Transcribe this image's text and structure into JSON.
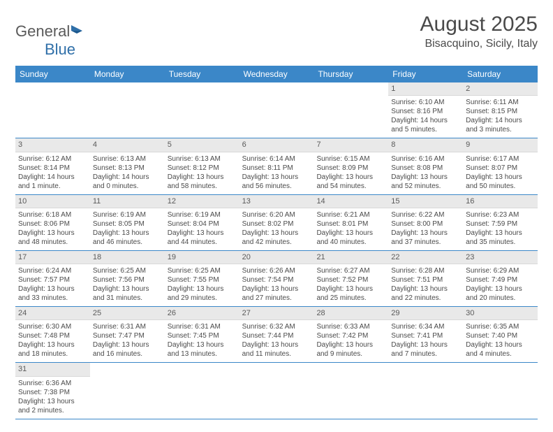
{
  "logo": {
    "textA": "General",
    "textB": "Blue"
  },
  "title": "August 2025",
  "location": "Bisacquino, Sicily, Italy",
  "colors": {
    "header_bg": "#3b87c8",
    "header_text": "#ffffff",
    "daynum_bg": "#e9e9e9",
    "row_border": "#3b87c8",
    "text": "#4a4a4a",
    "logo_gray": "#5a5a5a",
    "logo_blue": "#2f6fa8"
  },
  "weekdays": [
    "Sunday",
    "Monday",
    "Tuesday",
    "Wednesday",
    "Thursday",
    "Friday",
    "Saturday"
  ],
  "weeks": [
    [
      null,
      null,
      null,
      null,
      null,
      {
        "n": "1",
        "sr": "Sunrise: 6:10 AM",
        "ss": "Sunset: 8:16 PM",
        "dl": "Daylight: 14 hours and 5 minutes."
      },
      {
        "n": "2",
        "sr": "Sunrise: 6:11 AM",
        "ss": "Sunset: 8:15 PM",
        "dl": "Daylight: 14 hours and 3 minutes."
      }
    ],
    [
      {
        "n": "3",
        "sr": "Sunrise: 6:12 AM",
        "ss": "Sunset: 8:14 PM",
        "dl": "Daylight: 14 hours and 1 minute."
      },
      {
        "n": "4",
        "sr": "Sunrise: 6:13 AM",
        "ss": "Sunset: 8:13 PM",
        "dl": "Daylight: 14 hours and 0 minutes."
      },
      {
        "n": "5",
        "sr": "Sunrise: 6:13 AM",
        "ss": "Sunset: 8:12 PM",
        "dl": "Daylight: 13 hours and 58 minutes."
      },
      {
        "n": "6",
        "sr": "Sunrise: 6:14 AM",
        "ss": "Sunset: 8:11 PM",
        "dl": "Daylight: 13 hours and 56 minutes."
      },
      {
        "n": "7",
        "sr": "Sunrise: 6:15 AM",
        "ss": "Sunset: 8:09 PM",
        "dl": "Daylight: 13 hours and 54 minutes."
      },
      {
        "n": "8",
        "sr": "Sunrise: 6:16 AM",
        "ss": "Sunset: 8:08 PM",
        "dl": "Daylight: 13 hours and 52 minutes."
      },
      {
        "n": "9",
        "sr": "Sunrise: 6:17 AM",
        "ss": "Sunset: 8:07 PM",
        "dl": "Daylight: 13 hours and 50 minutes."
      }
    ],
    [
      {
        "n": "10",
        "sr": "Sunrise: 6:18 AM",
        "ss": "Sunset: 8:06 PM",
        "dl": "Daylight: 13 hours and 48 minutes."
      },
      {
        "n": "11",
        "sr": "Sunrise: 6:19 AM",
        "ss": "Sunset: 8:05 PM",
        "dl": "Daylight: 13 hours and 46 minutes."
      },
      {
        "n": "12",
        "sr": "Sunrise: 6:19 AM",
        "ss": "Sunset: 8:04 PM",
        "dl": "Daylight: 13 hours and 44 minutes."
      },
      {
        "n": "13",
        "sr": "Sunrise: 6:20 AM",
        "ss": "Sunset: 8:02 PM",
        "dl": "Daylight: 13 hours and 42 minutes."
      },
      {
        "n": "14",
        "sr": "Sunrise: 6:21 AM",
        "ss": "Sunset: 8:01 PM",
        "dl": "Daylight: 13 hours and 40 minutes."
      },
      {
        "n": "15",
        "sr": "Sunrise: 6:22 AM",
        "ss": "Sunset: 8:00 PM",
        "dl": "Daylight: 13 hours and 37 minutes."
      },
      {
        "n": "16",
        "sr": "Sunrise: 6:23 AM",
        "ss": "Sunset: 7:59 PM",
        "dl": "Daylight: 13 hours and 35 minutes."
      }
    ],
    [
      {
        "n": "17",
        "sr": "Sunrise: 6:24 AM",
        "ss": "Sunset: 7:57 PM",
        "dl": "Daylight: 13 hours and 33 minutes."
      },
      {
        "n": "18",
        "sr": "Sunrise: 6:25 AM",
        "ss": "Sunset: 7:56 PM",
        "dl": "Daylight: 13 hours and 31 minutes."
      },
      {
        "n": "19",
        "sr": "Sunrise: 6:25 AM",
        "ss": "Sunset: 7:55 PM",
        "dl": "Daylight: 13 hours and 29 minutes."
      },
      {
        "n": "20",
        "sr": "Sunrise: 6:26 AM",
        "ss": "Sunset: 7:54 PM",
        "dl": "Daylight: 13 hours and 27 minutes."
      },
      {
        "n": "21",
        "sr": "Sunrise: 6:27 AM",
        "ss": "Sunset: 7:52 PM",
        "dl": "Daylight: 13 hours and 25 minutes."
      },
      {
        "n": "22",
        "sr": "Sunrise: 6:28 AM",
        "ss": "Sunset: 7:51 PM",
        "dl": "Daylight: 13 hours and 22 minutes."
      },
      {
        "n": "23",
        "sr": "Sunrise: 6:29 AM",
        "ss": "Sunset: 7:49 PM",
        "dl": "Daylight: 13 hours and 20 minutes."
      }
    ],
    [
      {
        "n": "24",
        "sr": "Sunrise: 6:30 AM",
        "ss": "Sunset: 7:48 PM",
        "dl": "Daylight: 13 hours and 18 minutes."
      },
      {
        "n": "25",
        "sr": "Sunrise: 6:31 AM",
        "ss": "Sunset: 7:47 PM",
        "dl": "Daylight: 13 hours and 16 minutes."
      },
      {
        "n": "26",
        "sr": "Sunrise: 6:31 AM",
        "ss": "Sunset: 7:45 PM",
        "dl": "Daylight: 13 hours and 13 minutes."
      },
      {
        "n": "27",
        "sr": "Sunrise: 6:32 AM",
        "ss": "Sunset: 7:44 PM",
        "dl": "Daylight: 13 hours and 11 minutes."
      },
      {
        "n": "28",
        "sr": "Sunrise: 6:33 AM",
        "ss": "Sunset: 7:42 PM",
        "dl": "Daylight: 13 hours and 9 minutes."
      },
      {
        "n": "29",
        "sr": "Sunrise: 6:34 AM",
        "ss": "Sunset: 7:41 PM",
        "dl": "Daylight: 13 hours and 7 minutes."
      },
      {
        "n": "30",
        "sr": "Sunrise: 6:35 AM",
        "ss": "Sunset: 7:40 PM",
        "dl": "Daylight: 13 hours and 4 minutes."
      }
    ],
    [
      {
        "n": "31",
        "sr": "Sunrise: 6:36 AM",
        "ss": "Sunset: 7:38 PM",
        "dl": "Daylight: 13 hours and 2 minutes."
      },
      null,
      null,
      null,
      null,
      null,
      null
    ]
  ]
}
